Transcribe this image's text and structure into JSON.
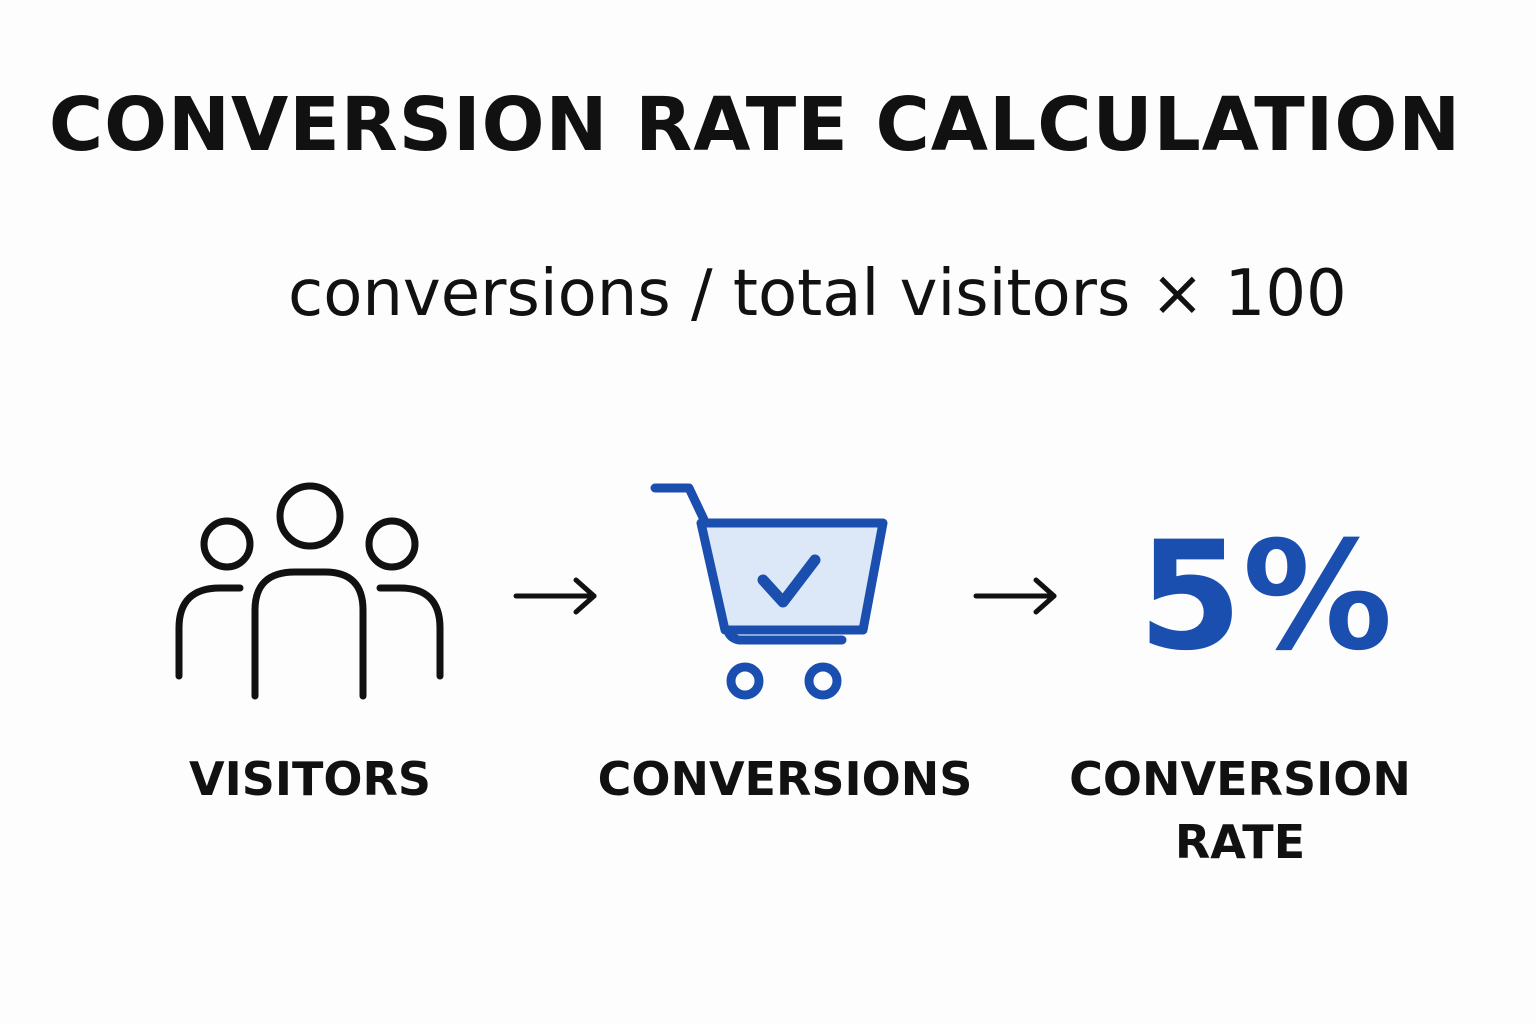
{
  "title": "CONVERSION RATE CALCULATION",
  "formula": "conversions / total visitors × 100",
  "steps": [
    {
      "label": "VISITORS",
      "icon": "people-group-icon"
    },
    {
      "label": "CONVERSIONS",
      "icon": "shopping-cart-check-icon"
    },
    {
      "label": "CONVERSION RATE",
      "value": "5%"
    }
  ],
  "arrow_icon": "right-arrow-icon",
  "colors": {
    "text": "#111111",
    "accent": "#1a4fb0",
    "cart_fill": "#dce8f7",
    "background": "#fdfdfd"
  }
}
